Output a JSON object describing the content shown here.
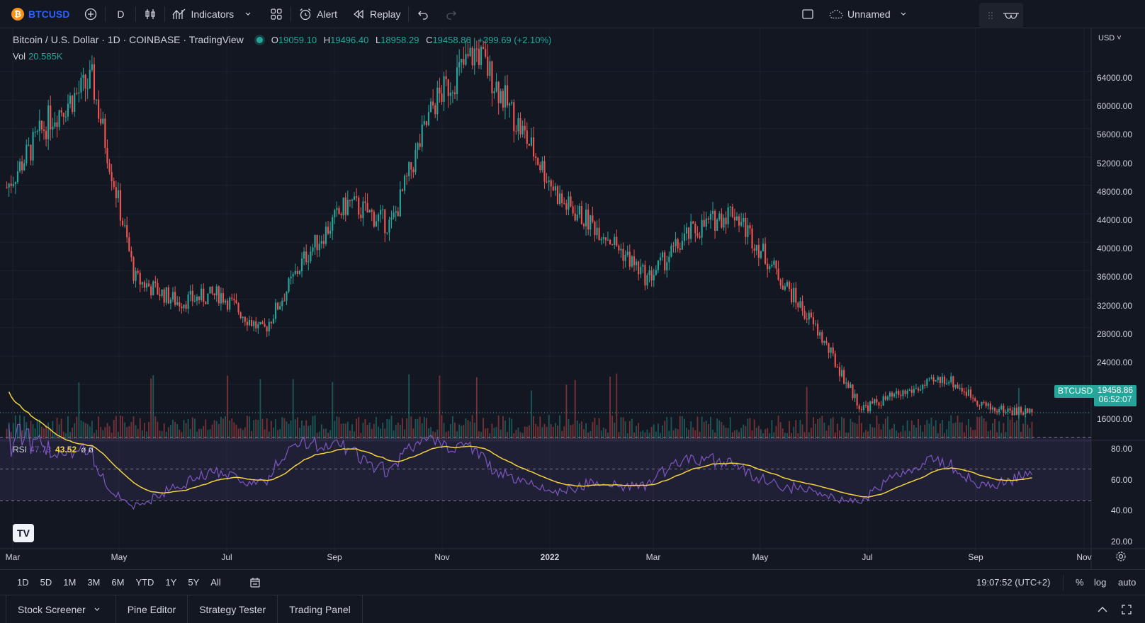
{
  "toolbar": {
    "symbol": "BTCUSD",
    "logo_glyph": "₿",
    "interval": "D",
    "indicators": "Indicators",
    "alert": "Alert",
    "replay": "Replay",
    "layout_name": "Unnamed"
  },
  "legend": {
    "title": "Bitcoin / U.S. Dollar · 1D · COINBASE · TradingView",
    "open_key": "O",
    "open": "19059.10",
    "high_key": "H",
    "high": "19496.40",
    "low_key": "L",
    "low": "18958.29",
    "close_key": "C",
    "close": "19458.86",
    "change": "+399.69 (+2.10%)",
    "vol_label": "Vol",
    "vol_value": "20.585K"
  },
  "rsi": {
    "label": "RSI",
    "value": "47.73",
    "ma": "43.52",
    "extra": "ø ø"
  },
  "price_axis": {
    "currency": "USD",
    "ticks": [
      "64000.00",
      "60000.00",
      "56000.00",
      "52000.00",
      "48000.00",
      "44000.00",
      "40000.00",
      "36000.00",
      "32000.00",
      "28000.00",
      "24000.00",
      "16000.00"
    ],
    "last_symbol": "BTCUSD",
    "last_price": "19458.86",
    "countdown": "06:52:07"
  },
  "rsi_axis": {
    "ticks": [
      "80.00",
      "60.00",
      "40.00",
      "20.00"
    ]
  },
  "date_axis": [
    "Mar",
    "May",
    "Jul",
    "Sep",
    "Nov",
    "2022",
    "Mar",
    "May",
    "Jul",
    "Sep",
    "Nov"
  ],
  "range_buttons": [
    "1D",
    "5D",
    "1M",
    "3M",
    "6M",
    "YTD",
    "1Y",
    "5Y",
    "All"
  ],
  "status": {
    "clock": "19:07:52 (UTC+2)",
    "percent": "%",
    "log": "log",
    "auto": "auto"
  },
  "bottom_tabs": [
    "Stock Screener",
    "Pine Editor",
    "Strategy Tester",
    "Trading Panel"
  ],
  "colors": {
    "up": "#26a69a",
    "down": "#ef5350",
    "background": "#131722",
    "rsi": "#7e57c2",
    "rsi_ma": "#f5d33f"
  },
  "chart_data": {
    "type": "candlestick",
    "ylim": [
      16000,
      68000
    ],
    "x": [
      "2021-03",
      "2021-04",
      "2021-05",
      "2021-06",
      "2021-07",
      "2021-08",
      "2021-09",
      "2021-10",
      "2021-11",
      "2021-12",
      "2022-01",
      "2022-02",
      "2022-03",
      "2022-04",
      "2022-05",
      "2022-06",
      "2022-07",
      "2022-08",
      "2022-09",
      "2022-10"
    ],
    "close_path": [
      49000,
      58000,
      63000,
      37000,
      34000,
      35000,
      30000,
      40000,
      47000,
      44000,
      60000,
      67000,
      57000,
      47000,
      43000,
      37000,
      43000,
      46000,
      38000,
      30000,
      20000,
      22000,
      24000,
      20000,
      19458
    ],
    "rsi_ylim": [
      20,
      80
    ],
    "rsi_bands": [
      30,
      50,
      70
    ]
  }
}
